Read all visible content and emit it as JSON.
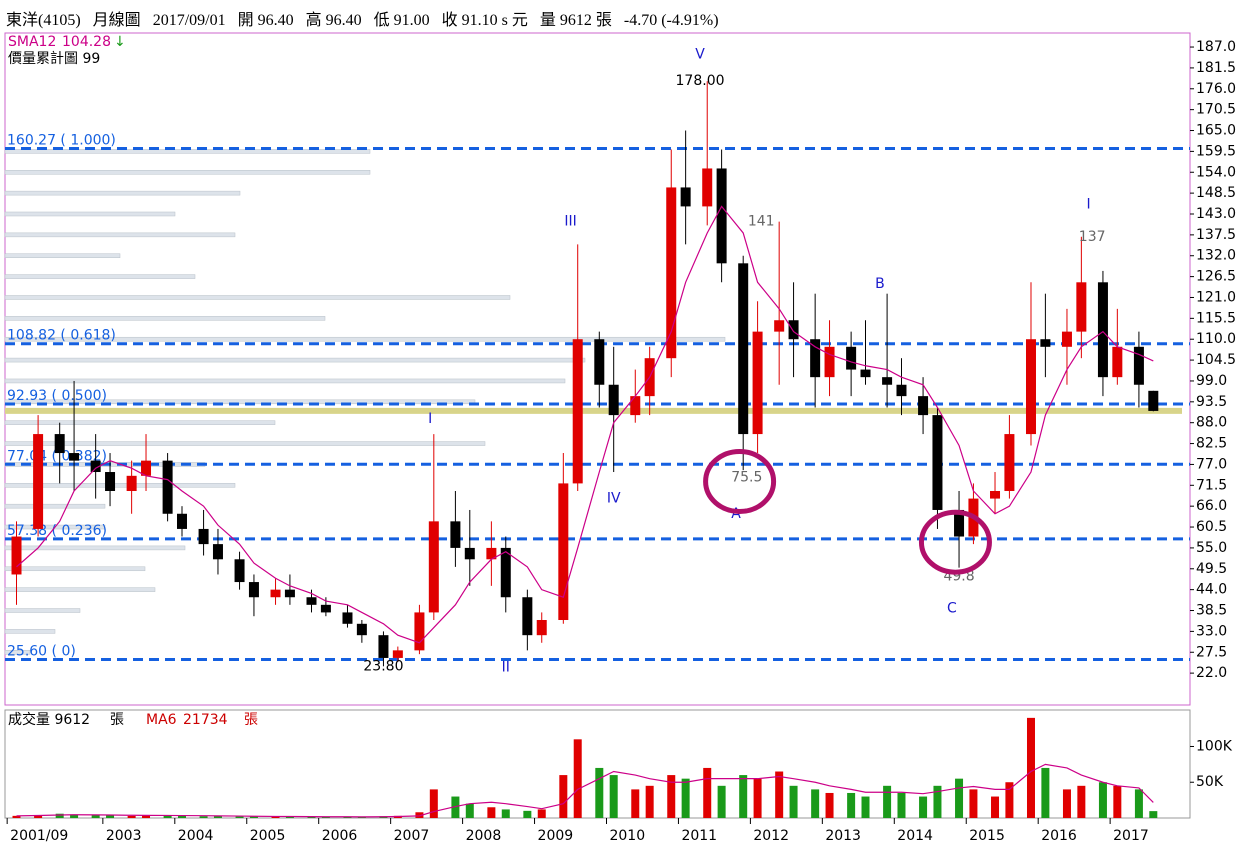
{
  "chart_data": {
    "type": "candlestick",
    "header": [
      "東洋(4105)",
      "月線圖",
      "2017/09/01",
      "開 96.40",
      "高 96.40",
      "低 91.00",
      "收 91.10 s 元",
      "量 9612 張",
      "-4.70 (-4.91%)"
    ],
    "legend_price": [
      "SMA12",
      "104.28",
      "價量累計圖 99"
    ],
    "legend_volume": [
      "成交量 9612",
      "張",
      "MA6",
      "21734",
      "張"
    ],
    "up_color": "#e00000",
    "down_color": "#000000",
    "vol_up_color": "#e00000",
    "vol_down_color": "#1a9a1a",
    "ma_color": "#cc0088",
    "fib_color": "#1560e0",
    "x": [
      2001.8,
      2002.1,
      2002.4,
      2002.6,
      2002.9,
      2003.1,
      2003.4,
      2003.6,
      2003.9,
      2004.1,
      2004.4,
      2004.6,
      2004.9,
      2005.1,
      2005.4,
      2005.6,
      2005.9,
      2006.1,
      2006.4,
      2006.6,
      2006.9,
      2007.1,
      2007.4,
      2007.6,
      2007.9,
      2008.1,
      2008.4,
      2008.6,
      2008.9,
      2009.1,
      2009.4,
      2009.6,
      2009.9,
      2010.1,
      2010.4,
      2010.6,
      2010.9,
      2011.1,
      2011.4,
      2011.6,
      2011.9,
      2012.1,
      2012.4,
      2012.6,
      2012.9,
      2013.1,
      2013.4,
      2013.6,
      2013.9,
      2014.1,
      2014.4,
      2014.6,
      2014.9,
      2015.1,
      2015.4,
      2015.6,
      2015.9,
      2016.1,
      2016.4,
      2016.6,
      2016.9,
      2017.1,
      2017.4,
      2017.6
    ],
    "open": [
      48,
      60,
      85,
      80,
      78,
      75,
      70,
      74,
      78,
      64,
      60,
      56,
      52,
      46,
      42,
      44,
      42,
      40,
      38,
      35,
      32,
      26,
      28,
      38,
      62,
      55,
      52,
      55,
      42,
      32,
      36,
      72,
      110,
      98,
      90,
      95,
      105,
      150,
      145,
      155,
      130,
      85,
      112,
      115,
      110,
      100,
      108,
      102,
      100,
      98,
      95,
      90,
      65,
      58,
      68,
      70,
      85,
      110,
      108,
      112,
      125,
      100,
      108,
      96.4
    ],
    "high": [
      62,
      90,
      88,
      99,
      85,
      80,
      78,
      85,
      80,
      66,
      65,
      60,
      54,
      48,
      47,
      48,
      44,
      42,
      40,
      36,
      33,
      29,
      40,
      85,
      70,
      65,
      62,
      58,
      44,
      38,
      80,
      135,
      112,
      108,
      102,
      108,
      160,
      165,
      178,
      160,
      132,
      120,
      141,
      125,
      122,
      115,
      112,
      115,
      122,
      105,
      100,
      92,
      70,
      72,
      75,
      90,
      125,
      122,
      118,
      137,
      128,
      118,
      112,
      96.4
    ],
    "low": [
      40,
      58,
      72,
      70,
      68,
      66,
      64,
      70,
      62,
      58,
      53,
      48,
      44,
      37,
      40,
      40,
      38,
      37,
      34,
      30,
      23.8,
      25,
      27,
      36,
      50,
      45,
      45,
      38,
      28,
      30,
      35,
      70,
      92,
      75,
      88,
      90,
      100,
      135,
      140,
      125,
      75.5,
      80,
      98,
      100,
      92,
      95,
      95,
      98,
      92,
      90,
      85,
      60,
      49.8,
      56,
      64,
      68,
      82,
      100,
      98,
      105,
      95,
      98,
      92,
      91
    ],
    "close": [
      58,
      85,
      80,
      78,
      75,
      70,
      74,
      78,
      64,
      60,
      56,
      52,
      46,
      42,
      44,
      42,
      40,
      38,
      35,
      32,
      26,
      28,
      38,
      62,
      55,
      52,
      55,
      42,
      32,
      36,
      72,
      110,
      98,
      90,
      95,
      105,
      150,
      145,
      155,
      130,
      85,
      112,
      115,
      110,
      100,
      108,
      102,
      100,
      98,
      95,
      90,
      65,
      58,
      68,
      70,
      85,
      110,
      108,
      112,
      125,
      100,
      108,
      98,
      91.1
    ],
    "sma12": [
      50,
      55,
      62,
      70,
      76,
      78,
      76,
      74,
      73,
      70,
      66,
      61,
      56,
      51,
      47,
      45,
      43,
      41,
      40,
      38,
      35,
      32,
      30,
      34,
      40,
      46,
      52,
      54,
      50,
      44,
      42,
      55,
      75,
      88,
      95,
      100,
      112,
      125,
      138,
      145,
      138,
      125,
      118,
      112,
      108,
      106,
      104,
      103,
      102,
      100,
      98,
      92,
      82,
      70,
      64,
      66,
      75,
      90,
      102,
      108,
      112,
      108,
      106,
      104.28
    ],
    "volume": [
      3000,
      4000,
      6000,
      5000,
      4000,
      3500,
      3000,
      4000,
      3500,
      3000,
      2500,
      2500,
      2000,
      2000,
      2000,
      1800,
      1800,
      1600,
      1500,
      1500,
      2500,
      3000,
      8000,
      40000,
      30000,
      20000,
      15000,
      12000,
      10000,
      12000,
      60000,
      110000,
      70000,
      60000,
      40000,
      45000,
      60000,
      55000,
      70000,
      45000,
      60000,
      55000,
      65000,
      45000,
      40000,
      35000,
      35000,
      30000,
      45000,
      35000,
      30000,
      45000,
      55000,
      40000,
      30000,
      50000,
      140000,
      70000,
      40000,
      45000,
      50000,
      45000,
      40000,
      9612
    ],
    "vol_ma6": [
      3000,
      3500,
      4200,
      4500,
      4400,
      4200,
      3800,
      3700,
      3600,
      3400,
      3200,
      3000,
      2700,
      2400,
      2200,
      2100,
      1900,
      1800,
      1700,
      1600,
      1800,
      2100,
      3000,
      9000,
      16000,
      20000,
      22000,
      20000,
      16000,
      13000,
      20000,
      40000,
      55000,
      65000,
      60000,
      55000,
      50000,
      50000,
      55000,
      55000,
      55000,
      55000,
      58000,
      55000,
      50000,
      45000,
      40000,
      36000,
      36000,
      36000,
      34000,
      37000,
      42000,
      44000,
      40000,
      40000,
      65000,
      75000,
      70000,
      60000,
      50000,
      45000,
      42000,
      21734
    ],
    "xlim": [
      2001.64,
      2018.11
    ],
    "xticks": [
      {
        "value": 2001.67,
        "label": "2001/09"
      },
      2003,
      2004,
      2005,
      2006,
      2007,
      2008,
      2009,
      2010,
      2011,
      2012,
      2013,
      2014,
      2015,
      2016,
      2017
    ],
    "ylim": [
      13.6,
      190.7
    ],
    "yticks": [
      {
        "value": 187,
        "label": "187.0"
      },
      {
        "value": 181.5,
        "label": "181.5"
      },
      {
        "value": 176,
        "label": "176.0"
      },
      {
        "value": 170.5,
        "label": "170.5"
      },
      {
        "value": 165,
        "label": "165.0"
      },
      {
        "value": 159.5,
        "label": "159.5"
      },
      {
        "value": 154,
        "label": "154.0"
      },
      {
        "value": 148.5,
        "label": "148.5"
      },
      {
        "value": 143,
        "label": "143.0"
      },
      {
        "value": 137.5,
        "label": "137.5"
      },
      {
        "value": 132,
        "label": "132.0"
      },
      {
        "value": 126.5,
        "label": "126.5"
      },
      {
        "value": 121,
        "label": "121.0"
      },
      {
        "value": 115.5,
        "label": "115.5"
      },
      {
        "value": 110,
        "label": "110.0"
      },
      {
        "value": 104.5,
        "label": "104.5"
      },
      {
        "value": 99,
        "label": "99.0"
      },
      {
        "value": 93.5,
        "label": "93.5"
      },
      {
        "value": 88,
        "label": "88.0"
      },
      {
        "value": 82.5,
        "label": "82.5"
      },
      {
        "value": 77,
        "label": "77.0"
      },
      {
        "value": 71.5,
        "label": "71.5"
      },
      {
        "value": 66,
        "label": "66.0"
      },
      {
        "value": 60.5,
        "label": "60.5"
      },
      {
        "value": 55,
        "label": "55.0"
      },
      {
        "value": 49.5,
        "label": "49.5"
      },
      {
        "value": 44,
        "label": "44.0"
      },
      {
        "value": 38.5,
        "label": "38.5"
      },
      {
        "value": 33,
        "label": "33.0"
      },
      {
        "value": 27.5,
        "label": "27.5"
      },
      {
        "value": 22,
        "label": "22.0"
      }
    ],
    "vol_ylim": [
      0,
      151000
    ],
    "vol_yticks": [
      {
        "value": 100000,
        "label": "100K"
      },
      {
        "value": 50000,
        "label": "50K"
      }
    ],
    "fib_levels": [
      {
        "value": 160.27,
        "label": "160.27 ( 1.000)"
      },
      {
        "value": 108.82,
        "label": "108.82 ( 0.618)"
      },
      {
        "value": 92.93,
        "label": "92.93 ( 0.500)"
      },
      {
        "value": 77.04,
        "label": "77.04 ( 0.382)"
      },
      {
        "value": 57.38,
        "label": "57.38 ( 0.236)"
      },
      {
        "value": 25.6,
        "label": "25.60 ( 0)"
      }
    ],
    "last_close_line": 91.1,
    "profile_levels": [
      165,
      159.5,
      154,
      148.5,
      143,
      137.5,
      132,
      126.5,
      121,
      115.5,
      110,
      104.5,
      99,
      93.5,
      88,
      82.5,
      77,
      71.5,
      66,
      60.5,
      55,
      49.5,
      44,
      38.5,
      33,
      27.5
    ],
    "profile_values": [
      0,
      365,
      365,
      235,
      170,
      230,
      115,
      190,
      505,
      320,
      720,
      580,
      560,
      470,
      270,
      480,
      200,
      230,
      100,
      100,
      180,
      140,
      150,
      75,
      50,
      25
    ],
    "profile_xlim": [
      0,
      1185
    ],
    "wave_labels": [
      {
        "text": "V",
        "x": 2011.3,
        "y": 185,
        "color": "#1a1acc"
      },
      {
        "text": "III",
        "x": 2009.5,
        "y": 141,
        "color": "#1a1acc"
      },
      {
        "text": "I",
        "x": 2007.55,
        "y": 89,
        "color": "#1a1acc"
      },
      {
        "text": "IV",
        "x": 2010.1,
        "y": 68,
        "color": "#1a1acc"
      },
      {
        "text": "II",
        "x": 2008.6,
        "y": 23.5,
        "color": "#1a1acc"
      },
      {
        "text": "A",
        "x": 2011.8,
        "y": 64,
        "color": "#1a1acc"
      },
      {
        "text": "B",
        "x": 2013.8,
        "y": 124.5,
        "color": "#1a1acc"
      },
      {
        "text": "C",
        "x": 2014.8,
        "y": 39,
        "color": "#1a1acc"
      },
      {
        "text": "I",
        "x": 2016.7,
        "y": 145.5,
        "color": "#1a1acc"
      }
    ],
    "price_labels": [
      {
        "text": "178.00",
        "x": 2011.3,
        "y": 178,
        "color": "#000000"
      },
      {
        "text": "141",
        "x": 2012.15,
        "y": 141,
        "color": "#666666"
      },
      {
        "text": "75.5",
        "x": 2011.95,
        "y": 73.5,
        "color": "#666666"
      },
      {
        "text": "23.80",
        "x": 2006.9,
        "y": 23.8,
        "color": "#000000"
      },
      {
        "text": "49.8",
        "x": 2014.9,
        "y": 47.5,
        "color": "#666666"
      },
      {
        "text": "137",
        "x": 2016.75,
        "y": 137,
        "color": "#666666"
      }
    ]
  }
}
